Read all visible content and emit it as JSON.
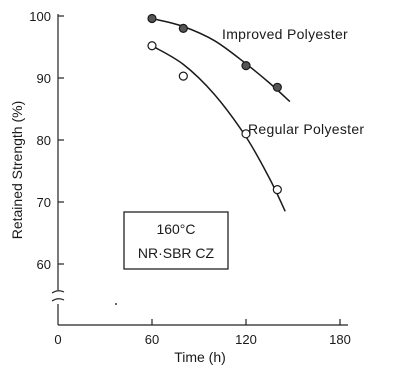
{
  "chart_data": {
    "type": "scatter",
    "xlabel": "Time (h)",
    "ylabel": "Retained Strength (%)",
    "xlim": [
      0,
      180
    ],
    "ylim": [
      60,
      100
    ],
    "x_ticks": [
      "0",
      "60",
      "120",
      "180"
    ],
    "y_ticks": [
      "100",
      "90",
      "80",
      "70",
      "60"
    ],
    "y_axis_break": true,
    "grid": false,
    "legend": "none",
    "series": [
      {
        "name": "Improved Polyester",
        "marker": "filled-circle",
        "color": "#555555",
        "points": [
          [
            60,
            99.6
          ],
          [
            80,
            98.0
          ],
          [
            120,
            92.0
          ],
          [
            140,
            88.5
          ]
        ],
        "curve": [
          [
            60,
            99.6
          ],
          [
            80,
            98.3
          ],
          [
            100,
            96.0
          ],
          [
            120,
            92.3
          ],
          [
            135,
            89.2
          ],
          [
            148,
            86.2
          ]
        ]
      },
      {
        "name": "Regular Polyester",
        "marker": "open-circle",
        "color": "#ffffff",
        "points": [
          [
            60,
            95.2
          ],
          [
            80,
            90.3
          ],
          [
            120,
            81.0
          ],
          [
            140,
            72.0
          ]
        ],
        "curve": [
          [
            60,
            95.2
          ],
          [
            80,
            92.2
          ],
          [
            100,
            87.3
          ],
          [
            120,
            80.5
          ],
          [
            135,
            73.8
          ],
          [
            145,
            68.5
          ]
        ]
      }
    ],
    "annotation_box": {
      "line1": "160°C",
      "line2": "NR·SBR CZ"
    }
  }
}
